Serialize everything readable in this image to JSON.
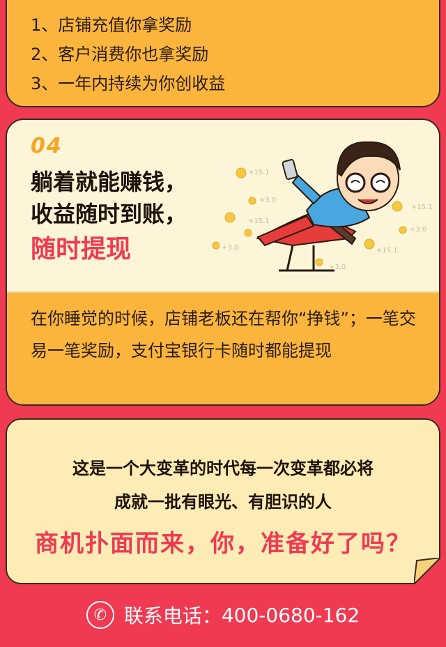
{
  "rewards": {
    "items": [
      "1、店铺充值你拿奖励",
      "2、客户消费你也拿奖励",
      "3、一年内持续为你创收益"
    ]
  },
  "section4": {
    "number": "04",
    "headline_lines": [
      "躺着就能赚钱，",
      "收益随时到账，"
    ],
    "headline_highlight": "随时提现",
    "coin_labels": [
      "+15.1",
      "+3.0",
      "+15.1",
      "+3.0",
      "+15.1",
      "+3.0",
      "+15.1",
      "+3.0"
    ],
    "paragraph": "在你睡觉的时候，店铺老板还在帮你“挣钱”；一笔交易一笔奖励，支付宝银行卡随时都能提现"
  },
  "note": {
    "line1": "这是一个大变革的时代每一次变革都必将",
    "line2": "成就一批有眼光、有胆识的人",
    "line3": "商机扑面而来，你，准备好了吗？"
  },
  "footer": {
    "icon": "phone-icon",
    "label": "联系电话：",
    "phone": "400-0680-162"
  },
  "colors": {
    "background": "#ef3a52",
    "card_yellow": "#fbb53d",
    "card_cream": "#fdf5d8",
    "note_cream": "#fdecb6",
    "accent_red": "#ef3a52"
  }
}
